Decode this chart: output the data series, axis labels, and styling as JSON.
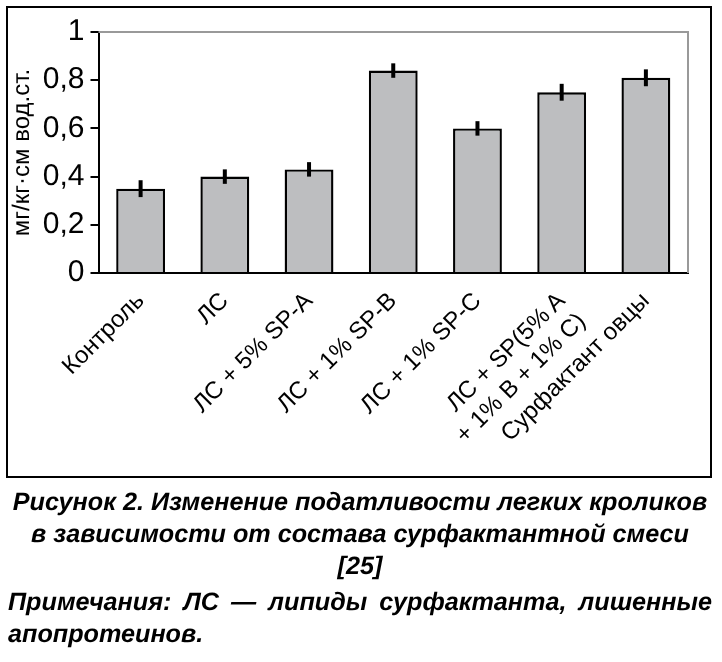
{
  "chart_data": {
    "type": "bar",
    "ylabel": "мг/кг·см вод.ст.",
    "categories": [
      "Контроль",
      "ЛС",
      "ЛС + 5% SP-A",
      "ЛС + 1% SP-B",
      "ЛС + 1% SP-C",
      "ЛС + SP(5% A\n+ 1% B + 1% C)",
      "Сурфактант овцы"
    ],
    "values": [
      0.35,
      0.4,
      0.43,
      0.84,
      0.6,
      0.75,
      0.81
    ],
    "errors": [
      0.035,
      0.03,
      0.03,
      0.03,
      0.03,
      0.035,
      0.035
    ],
    "color": "#bdbec0",
    "ylim": [
      0,
      1
    ],
    "yticks": [
      0,
      {
        "value": 0.2,
        "label": "0,2"
      },
      {
        "value": 0.4,
        "label": "0,4"
      },
      {
        "value": 0.6,
        "label": "0,6"
      },
      {
        "value": 0.8,
        "label": "0,8"
      },
      1
    ],
    "grid": false,
    "legend": false,
    "annotations": [
      "Рисунок 2. Изменение податливости легких кроликов в зависимости от состава сурфактантной смеси [25]",
      "Примечания: ЛС — липиды сурфактанта, лишенные апопротеинов."
    ]
  }
}
